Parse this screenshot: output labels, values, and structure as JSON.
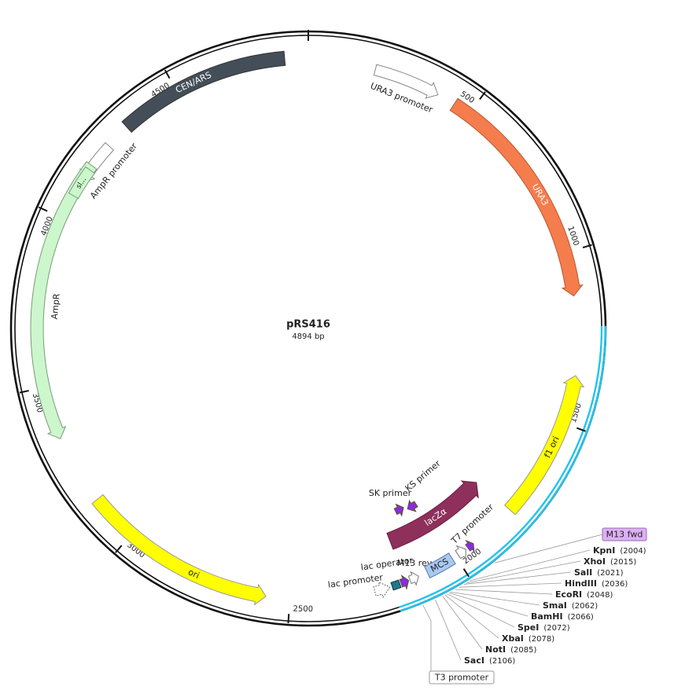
{
  "plasmid": {
    "name": "pRS416",
    "size": "4894 bp"
  },
  "ruler": [
    500,
    1000,
    1500,
    2000,
    2500,
    3000,
    3500,
    4000,
    4500
  ],
  "features": [
    {
      "label": "URA3 promoter"
    },
    {
      "label": "URA3"
    },
    {
      "label": "CEN/ARS"
    },
    {
      "label": "AmpR promoter"
    },
    {
      "label": "AmpR"
    },
    {
      "label": "sl..."
    },
    {
      "label": "ori"
    },
    {
      "label": "f1 ori"
    },
    {
      "label": "lacZα"
    },
    {
      "label": "SK primer"
    },
    {
      "label": "KS primer"
    },
    {
      "label": "lac operator"
    },
    {
      "label": "lac promoter"
    },
    {
      "label": "M13 rev"
    },
    {
      "label": "MCS"
    },
    {
      "label": "T7 promoter"
    },
    {
      "label": "M13 fwd"
    },
    {
      "label": "T3 promoter"
    }
  ],
  "sites": [
    {
      "name": "KpnI",
      "position": "(2004)"
    },
    {
      "name": "XhoI",
      "position": "(2015)"
    },
    {
      "name": "SalI",
      "position": "(2021)"
    },
    {
      "name": "HindIII",
      "position": "(2036)"
    },
    {
      "name": "EcoRI",
      "position": "(2048)"
    },
    {
      "name": "SmaI",
      "position": "(2062)"
    },
    {
      "name": "BamHI",
      "position": "(2066)"
    },
    {
      "name": "SpeI",
      "position": "(2072)"
    },
    {
      "name": "XbaI",
      "position": "(2078)"
    },
    {
      "name": "NotI",
      "position": "(2085)"
    },
    {
      "name": "SacI",
      "position": "(2106)"
    }
  ]
}
